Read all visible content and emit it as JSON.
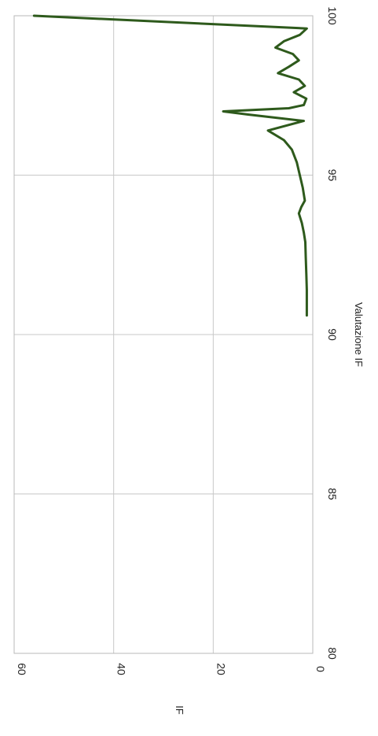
{
  "chart_data": {
    "type": "line",
    "orientation": "rotated-90-clockwise",
    "title": "",
    "xlabel": "Valutazione IF",
    "ylabel": "IF",
    "xlim": [
      80,
      100
    ],
    "ylim": [
      0,
      60
    ],
    "xticks": [
      "80",
      "85",
      "90",
      "95",
      "100"
    ],
    "yticks": [
      "0",
      "20",
      "40",
      "60"
    ],
    "grid": true,
    "line_color": "#2e5a1c",
    "series": [
      {
        "x": [
          90.6,
          90.9,
          91.4,
          91.9,
          92.4,
          92.9,
          93.2,
          93.5,
          93.8,
          94.0,
          94.2,
          94.6,
          95.0,
          95.4,
          95.8,
          96.1,
          96.4,
          96.7,
          96.9,
          97.0,
          97.1,
          97.2,
          97.4,
          97.6,
          97.8,
          98.0,
          98.2,
          98.4,
          98.6,
          98.8,
          99.0,
          99.2,
          99.4,
          99.6,
          100.0
        ],
        "y": [
          1.2,
          1.2,
          1.2,
          1.3,
          1.4,
          1.5,
          1.8,
          2.2,
          2.8,
          2.3,
          1.6,
          2.0,
          2.6,
          3.2,
          4.2,
          5.8,
          9.0,
          1.8,
          13.0,
          18.0,
          4.8,
          1.8,
          1.3,
          3.8,
          1.6,
          2.8,
          7.0,
          4.8,
          2.8,
          4.0,
          7.5,
          5.8,
          2.6,
          1.2,
          56.0
        ]
      }
    ]
  }
}
